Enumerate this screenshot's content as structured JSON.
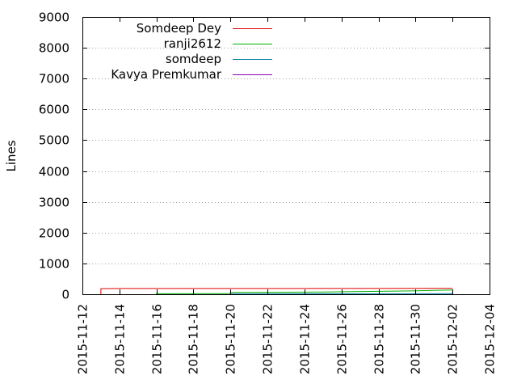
{
  "chart_data": {
    "type": "line",
    "title": "",
    "xlabel": "",
    "ylabel": "Lines",
    "x_axis_type": "date",
    "xlim": [
      "2015-11-12",
      "2015-12-04"
    ],
    "ylim": [
      0,
      9000
    ],
    "grid": true,
    "legend_position": "top-left",
    "x_ticks": [
      "2015-11-12",
      "2015-11-14",
      "2015-11-16",
      "2015-11-18",
      "2015-11-20",
      "2015-11-22",
      "2015-11-24",
      "2015-11-26",
      "2015-11-28",
      "2015-11-30",
      "2015-12-02",
      "2015-12-04"
    ],
    "y_ticks": [
      0,
      1000,
      2000,
      3000,
      4000,
      5000,
      6000,
      7000,
      8000,
      9000
    ],
    "series": [
      {
        "name": "Somdeep Dey",
        "color": "#e00000",
        "points": [
          {
            "x": "2015-11-13",
            "y": 0
          },
          {
            "x": "2015-11-13",
            "y": 120
          },
          {
            "x": "2015-11-13",
            "y": 180
          },
          {
            "x": "2015-11-14",
            "y": 185
          },
          {
            "x": "2015-11-20",
            "y": 185
          },
          {
            "x": "2015-11-30",
            "y": 190
          },
          {
            "x": "2015-12-02",
            "y": 195
          }
        ]
      },
      {
        "name": "ranji2612",
        "color": "#00b000",
        "points": [
          {
            "x": "2015-11-16",
            "y": 0
          },
          {
            "x": "2015-11-16",
            "y": 15
          },
          {
            "x": "2015-11-20",
            "y": 20
          },
          {
            "x": "2015-11-20",
            "y": 60
          },
          {
            "x": "2015-11-25",
            "y": 70
          },
          {
            "x": "2015-11-30",
            "y": 110
          },
          {
            "x": "2015-12-02",
            "y": 140
          }
        ]
      },
      {
        "name": "somdeep",
        "color": "#0080a0",
        "points": [
          {
            "x": "2015-11-20",
            "y": 0
          },
          {
            "x": "2015-11-20",
            "y": 10
          },
          {
            "x": "2015-11-30",
            "y": 15
          },
          {
            "x": "2015-12-02",
            "y": 20
          }
        ]
      },
      {
        "name": "Kavya Premkumar",
        "color": "#9000c0",
        "points": [
          {
            "x": "2015-12-02",
            "y": 0
          },
          {
            "x": "2015-12-02",
            "y": 40
          },
          {
            "x": "2015-12-02",
            "y": 80
          }
        ]
      }
    ]
  }
}
